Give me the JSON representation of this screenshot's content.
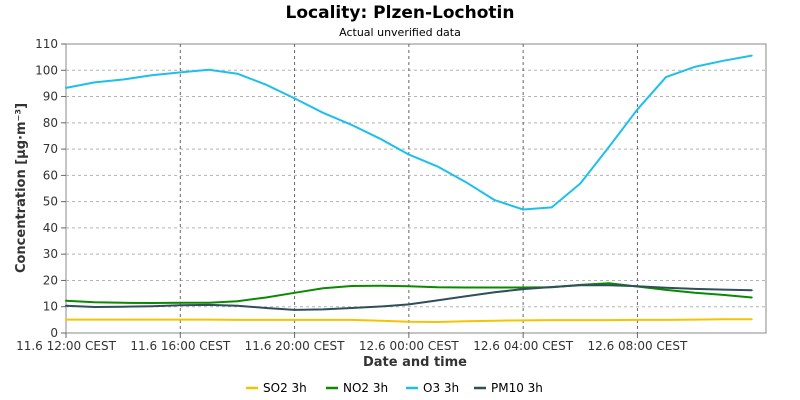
{
  "chart_data": {
    "type": "line",
    "title": "Locality: Plzen-Lochotin",
    "subtitle": "Actual unverified data",
    "xlabel": "Date and time",
    "ylabel": "Concentration [µg·m⁻³]",
    "ylim": [
      0,
      110
    ],
    "yticks": [
      0,
      10,
      20,
      30,
      40,
      50,
      60,
      70,
      80,
      90,
      100,
      110
    ],
    "xlim": [
      0,
      24.5
    ],
    "xticks": [
      {
        "hour": 0,
        "label": "11.6 12:00 CEST"
      },
      {
        "hour": 4,
        "label": "11.6 16:00 CEST"
      },
      {
        "hour": 8,
        "label": "11.6 20:00 CEST"
      },
      {
        "hour": 12,
        "label": "12.6 00:00 CEST"
      },
      {
        "hour": 16,
        "label": "12.6 04:00 CEST"
      },
      {
        "hour": 20,
        "label": "12.6 08:00 CEST"
      }
    ],
    "grid": true,
    "legend_position": "bottom",
    "series": [
      {
        "name": "SO2 3h",
        "color": "#f5c400",
        "x": [
          0,
          1,
          2,
          3,
          4,
          5,
          6,
          7,
          8,
          9,
          10,
          11,
          12,
          13,
          14,
          15,
          16,
          17,
          18,
          19,
          20,
          21,
          22,
          23,
          24
        ],
        "values": [
          5.1,
          5.1,
          5.1,
          5.1,
          5.1,
          5.1,
          5.0,
          5.0,
          5.0,
          5.0,
          5.0,
          4.7,
          4.3,
          4.2,
          4.5,
          4.7,
          4.8,
          4.9,
          4.9,
          4.9,
          5.0,
          5.0,
          5.1,
          5.2,
          5.2
        ]
      },
      {
        "name": "NO2 3h",
        "color": "#0a8a00",
        "x": [
          0,
          1,
          2,
          3,
          4,
          5,
          6,
          7,
          8,
          9,
          10,
          11,
          12,
          13,
          14,
          15,
          16,
          17,
          18,
          19,
          20,
          21,
          22,
          23,
          24
        ],
        "values": [
          12.3,
          11.7,
          11.5,
          11.4,
          11.5,
          11.5,
          12.1,
          13.5,
          15.3,
          17.0,
          17.9,
          18.0,
          17.8,
          17.4,
          17.3,
          17.3,
          17.3,
          17.4,
          18.3,
          18.9,
          17.7,
          16.4,
          15.3,
          14.5,
          13.5
        ]
      },
      {
        "name": "O3 3h",
        "color": "#1fbfed",
        "x": [
          0,
          1,
          2,
          3,
          4,
          5,
          6,
          7,
          8,
          9,
          10,
          11,
          12,
          13,
          14,
          15,
          16,
          17,
          18,
          19,
          20,
          21,
          22,
          23,
          24
        ],
        "values": [
          93.3,
          95.4,
          96.5,
          98.1,
          99.2,
          100.2,
          98.7,
          94.5,
          89.3,
          83.8,
          79.2,
          73.9,
          67.9,
          63.4,
          57.4,
          50.6,
          47.0,
          47.8,
          56.9,
          70.8,
          85.1,
          97.4,
          101.3,
          103.6,
          105.6
        ]
      },
      {
        "name": "PM10 3h",
        "color": "#2f4f5a",
        "x": [
          0,
          1,
          2,
          3,
          4,
          5,
          6,
          7,
          8,
          9,
          10,
          11,
          12,
          13,
          14,
          15,
          16,
          17,
          18,
          19,
          20,
          21,
          22,
          23,
          24
        ],
        "values": [
          10.4,
          9.9,
          10.0,
          10.2,
          10.6,
          10.7,
          10.4,
          9.5,
          8.8,
          9.0,
          9.5,
          10.1,
          10.9,
          12.4,
          14.0,
          15.5,
          16.7,
          17.5,
          18.2,
          18.2,
          17.8,
          17.2,
          16.8,
          16.5,
          16.3
        ]
      }
    ]
  }
}
